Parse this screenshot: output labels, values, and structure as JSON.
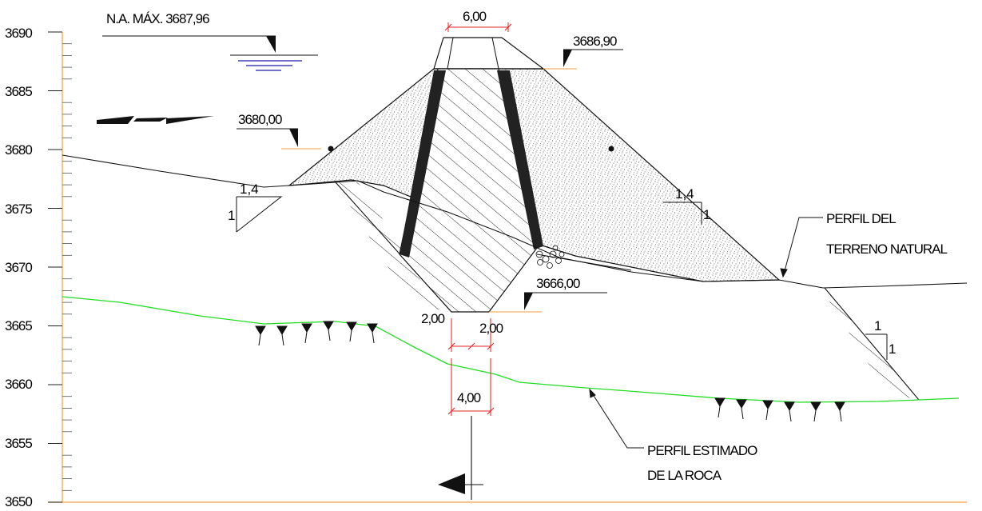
{
  "axis": {
    "ticks": [
      "3690",
      "3685",
      "3680",
      "3675",
      "3670",
      "3665",
      "3660",
      "3655",
      "3650"
    ]
  },
  "labels": {
    "na_max": "N.A. MÁX. 3687,96",
    "crest_width": "6,00",
    "crest_elev": "3686,90",
    "berm_elev": "3680,00",
    "base_elev": "3666,00",
    "base_left": "2,00",
    "base_right": "2,00",
    "base_total": "4,00",
    "terrain_1": "PERFIL DEL",
    "terrain_2": "TERRENO NATURAL",
    "rock_1": "PERFIL ESTIMADO",
    "rock_2": "DE LA ROCA"
  },
  "slopes": {
    "upstream": {
      "h": "1,4",
      "v": "1"
    },
    "downstream": {
      "h": "1,4",
      "v": "1"
    },
    "excavation": {
      "h": "1",
      "v": "1"
    }
  },
  "colors": {
    "axis": "#f0a040",
    "rock": "#22dd22",
    "water": "#1a1aa8",
    "dim": "#e02020",
    "core_stripe": "#222222"
  }
}
